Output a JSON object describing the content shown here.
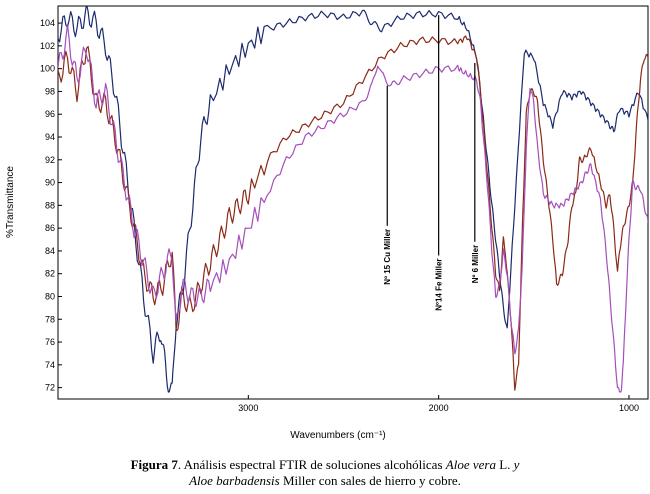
{
  "chart_data": {
    "type": "line",
    "xlabel": "Wavenumbers (cm⁻¹)",
    "ylabel": "%Transmittance",
    "xlim": [
      4000,
      900
    ],
    "ylim": [
      71,
      105.5
    ],
    "x_ticks": [
      "3000",
      "2000",
      "1000"
    ],
    "x_tick_values": [
      3000,
      2000,
      1000
    ],
    "y_ticks": [
      72,
      74,
      76,
      78,
      80,
      82,
      84,
      86,
      88,
      90,
      92,
      94,
      96,
      98,
      100,
      102,
      104
    ],
    "grid": false,
    "legend": "none",
    "series": [
      {
        "color": "#1c2a6e",
        "x": [
          4000,
          3950,
          3900,
          3850,
          3800,
          3750,
          3700,
          3650,
          3600,
          3550,
          3500,
          3460,
          3430,
          3400,
          3380,
          3350,
          3300,
          3250,
          3200,
          3100,
          3000,
          2900,
          2800,
          2700,
          2600,
          2500,
          2400,
          2350,
          2300,
          2200,
          2100,
          2000,
          1900,
          1850,
          1800,
          1780,
          1750,
          1720,
          1700,
          1680,
          1660,
          1640,
          1600,
          1550,
          1500,
          1450,
          1400,
          1350,
          1300,
          1250,
          1200,
          1150,
          1100,
          1080,
          1050,
          1000,
          950,
          900
        ],
        "y": [
          103,
          104.5,
          103.5,
          104.8,
          104,
          102,
          98,
          92,
          86,
          80,
          75,
          77,
          73,
          71.5,
          78,
          80,
          87,
          94,
          97,
          100,
          102,
          103.5,
          104,
          104.5,
          104.8,
          104.5,
          105,
          104,
          103.5,
          104.5,
          104.8,
          104.8,
          104.5,
          103.5,
          101,
          98,
          93,
          88,
          85,
          82,
          79,
          77,
          88,
          101.5,
          101,
          97,
          95,
          98,
          97.5,
          98,
          97,
          96,
          95,
          94.5,
          96.5,
          96,
          98,
          95.5
        ]
      },
      {
        "color": "#8b2a17",
        "x": [
          4000,
          3950,
          3900,
          3850,
          3800,
          3750,
          3700,
          3650,
          3600,
          3550,
          3500,
          3450,
          3400,
          3380,
          3350,
          3300,
          3250,
          3200,
          3150,
          3100,
          3050,
          3000,
          2900,
          2800,
          2700,
          2600,
          2500,
          2400,
          2300,
          2200,
          2100,
          2000,
          1900,
          1850,
          1800,
          1780,
          1760,
          1740,
          1720,
          1700,
          1680,
          1660,
          1650,
          1640,
          1620,
          1600,
          1580,
          1560,
          1540,
          1520,
          1500,
          1480,
          1450,
          1420,
          1400,
          1380,
          1350,
          1320,
          1300,
          1280,
          1260,
          1240,
          1200,
          1150,
          1120,
          1100,
          1080,
          1060,
          1050,
          1030,
          1000,
          980,
          960,
          940,
          920,
          900
        ],
        "y": [
          99,
          101,
          98,
          102,
          97,
          97,
          94,
          90,
          86,
          82,
          80,
          81,
          84,
          77,
          80,
          79,
          81,
          83,
          85,
          87,
          88,
          89,
          92,
          94,
          95,
          96,
          97,
          99,
          101,
          102,
          102.5,
          102.5,
          102.3,
          102.8,
          101,
          98,
          94,
          90,
          86,
          82,
          80.5,
          85,
          84,
          82,
          78,
          72,
          74,
          86,
          96,
          98,
          98,
          97,
          92,
          88,
          85,
          81,
          82,
          85,
          88,
          89,
          92,
          92,
          93,
          90,
          88,
          89,
          86,
          82,
          84,
          86,
          88,
          90,
          95,
          99,
          101,
          101
        ]
      },
      {
        "color": "#a44fbb",
        "x": [
          4000,
          3950,
          3900,
          3850,
          3800,
          3750,
          3700,
          3650,
          3600,
          3550,
          3500,
          3450,
          3400,
          3380,
          3350,
          3300,
          3250,
          3200,
          3100,
          3000,
          2900,
          2800,
          2700,
          2600,
          2500,
          2400,
          2350,
          2320,
          2300,
          2250,
          2200,
          2100,
          2000,
          1900,
          1850,
          1800,
          1780,
          1760,
          1740,
          1720,
          1700,
          1680,
          1660,
          1640,
          1620,
          1600,
          1580,
          1560,
          1540,
          1520,
          1500,
          1480,
          1450,
          1400,
          1350,
          1300,
          1250,
          1220,
          1200,
          1150,
          1120,
          1100,
          1080,
          1060,
          1050,
          1040,
          1030,
          1020,
          1000,
          980,
          960,
          940,
          920,
          900
        ],
        "y": [
          100,
          103,
          99,
          102,
          97,
          98,
          94,
          90,
          86,
          83,
          80,
          82,
          84,
          77,
          81,
          80,
          80,
          81,
          83,
          86,
          89,
          92,
          94,
          95,
          96,
          97,
          98.5,
          100.5,
          99.5,
          98.5,
          99,
          99.5,
          100,
          100,
          99.5,
          99,
          97,
          93,
          89,
          84,
          80,
          81,
          84,
          82,
          78,
          75,
          77,
          83,
          93,
          98.5,
          97,
          93,
          89,
          88,
          88,
          89,
          90,
          91,
          91.5,
          88.5,
          84,
          80,
          76,
          72,
          71.5,
          72,
          74,
          78,
          85,
          90,
          89.5,
          89.5,
          88,
          86.5
        ]
      }
    ],
    "annotations": [
      {
        "text": "Nº 15 Cu Miller",
        "x": 2270,
        "y_top": 98.5,
        "y_bottom": 86.2
      },
      {
        "text": "Nº14 Fe Miller",
        "x": 2000,
        "y_top": 104.7,
        "y_bottom": 83.6
      },
      {
        "text": "Nº 6 Miller",
        "x": 1810,
        "y_top": 100.5,
        "y_bottom": 84.8
      }
    ]
  },
  "caption": {
    "label": "Figura 7",
    "part1": ".  Análisis espectral FTIR de soluciones alcohólicas ",
    "species1": "Aloe vera",
    "part2": " L. ",
    "conj": "y",
    "species2": "Aloe barbadensis",
    "part3": " Miller con sales de hierro y cobre."
  }
}
